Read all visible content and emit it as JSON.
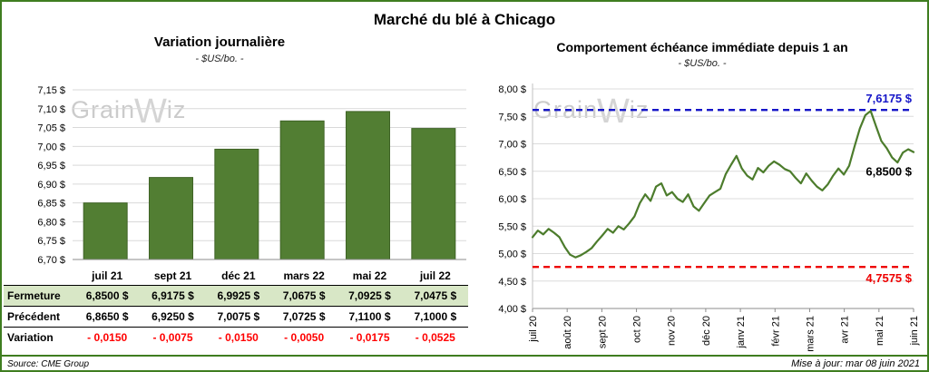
{
  "page": {
    "title": "Marché du blé à Chicago"
  },
  "left_panel": {
    "title": "Variation journalière",
    "subtitle": "- $US/bo. -"
  },
  "right_panel": {
    "title": "Comportement échéance immédiate depuis 1 an",
    "subtitle": "- $US/bo. -"
  },
  "watermark": {
    "prefix": "Grain",
    "peak": "W",
    "suffix": "iz"
  },
  "table": {
    "columns": [
      "juil 21",
      "sept 21",
      "déc 21",
      "mars 22",
      "mai 22",
      "juil 22"
    ],
    "rows": [
      {
        "key": "fermeture",
        "label": "Fermeture",
        "values": [
          "6,8500 $",
          "6,9175 $",
          "6,9925 $",
          "7,0675 $",
          "7,0925 $",
          "7,0475 $"
        ]
      },
      {
        "key": "precedent",
        "label": "Précédent",
        "values": [
          "6,8650 $",
          "6,9250 $",
          "7,0075 $",
          "7,0725 $",
          "7,1100 $",
          "7,1000 $"
        ]
      },
      {
        "key": "variation",
        "label": "Variation",
        "values": [
          "- 0,0150",
          "- 0,0075",
          "- 0,0150",
          "- 0,0050",
          "- 0,0175",
          "- 0,0525"
        ]
      }
    ]
  },
  "footer": {
    "source": "Source: CME Group",
    "updated": "Mise à jour: mar 08 juin 2021"
  },
  "colors": {
    "green_accent": "#3f7d20",
    "bar_fill": "#527e33",
    "bar_stroke": "#3f6326",
    "line_green": "#4c7c2c",
    "high_blue": "#1515c8",
    "low_red": "#ee0000",
    "variation_red": "#ff0000",
    "fermeture_bg": "#d8e7c6",
    "watermark_gray": "#cbcbcb"
  },
  "chart_data": [
    {
      "type": "bar",
      "title": "Variation journalière",
      "subtitle": "- $US/bo. -",
      "categories": [
        "juil 21",
        "sept 21",
        "déc 21",
        "mars 22",
        "mai 22",
        "juil 22"
      ],
      "values": [
        6.85,
        6.9175,
        6.9925,
        7.0675,
        7.0925,
        7.0475
      ],
      "ylim": [
        6.7,
        7.15
      ],
      "ytick_step": 0.05,
      "grid": true,
      "legend": "none"
    },
    {
      "type": "line",
      "title": "Comportement échéance immédiate depuis 1 an",
      "subtitle": "- $US/bo. -",
      "x_labels": [
        "juil 20",
        "août 20",
        "sept 20",
        "oct 20",
        "nov 20",
        "déc 20",
        "janv 21",
        "févr 21",
        "mars 21",
        "avr 21",
        "mai 21",
        "juin 21"
      ],
      "values": [
        5.3,
        5.42,
        5.35,
        5.45,
        5.38,
        5.3,
        5.12,
        4.98,
        4.93,
        4.97,
        5.03,
        5.1,
        5.22,
        5.33,
        5.45,
        5.38,
        5.5,
        5.44,
        5.55,
        5.68,
        5.92,
        6.08,
        5.96,
        6.22,
        6.28,
        6.06,
        6.12,
        6.0,
        5.94,
        6.08,
        5.86,
        5.78,
        5.92,
        6.06,
        6.12,
        6.18,
        6.45,
        6.62,
        6.78,
        6.55,
        6.42,
        6.35,
        6.56,
        6.48,
        6.6,
        6.68,
        6.62,
        6.54,
        6.5,
        6.38,
        6.28,
        6.46,
        6.33,
        6.22,
        6.15,
        6.26,
        6.42,
        6.55,
        6.44,
        6.6,
        6.95,
        7.28,
        7.52,
        7.6,
        7.32,
        7.05,
        6.92,
        6.75,
        6.66,
        6.84,
        6.9,
        6.85
      ],
      "ylim": [
        4.0,
        8.0
      ],
      "ytick_step": 0.5,
      "grid": true,
      "high_line": {
        "value": 7.6175,
        "label": "7,6175 $"
      },
      "low_line": {
        "value": 4.7575,
        "label": "4,7575 $"
      },
      "last_label": {
        "value": 6.85,
        "label": "6,8500 $"
      }
    }
  ]
}
